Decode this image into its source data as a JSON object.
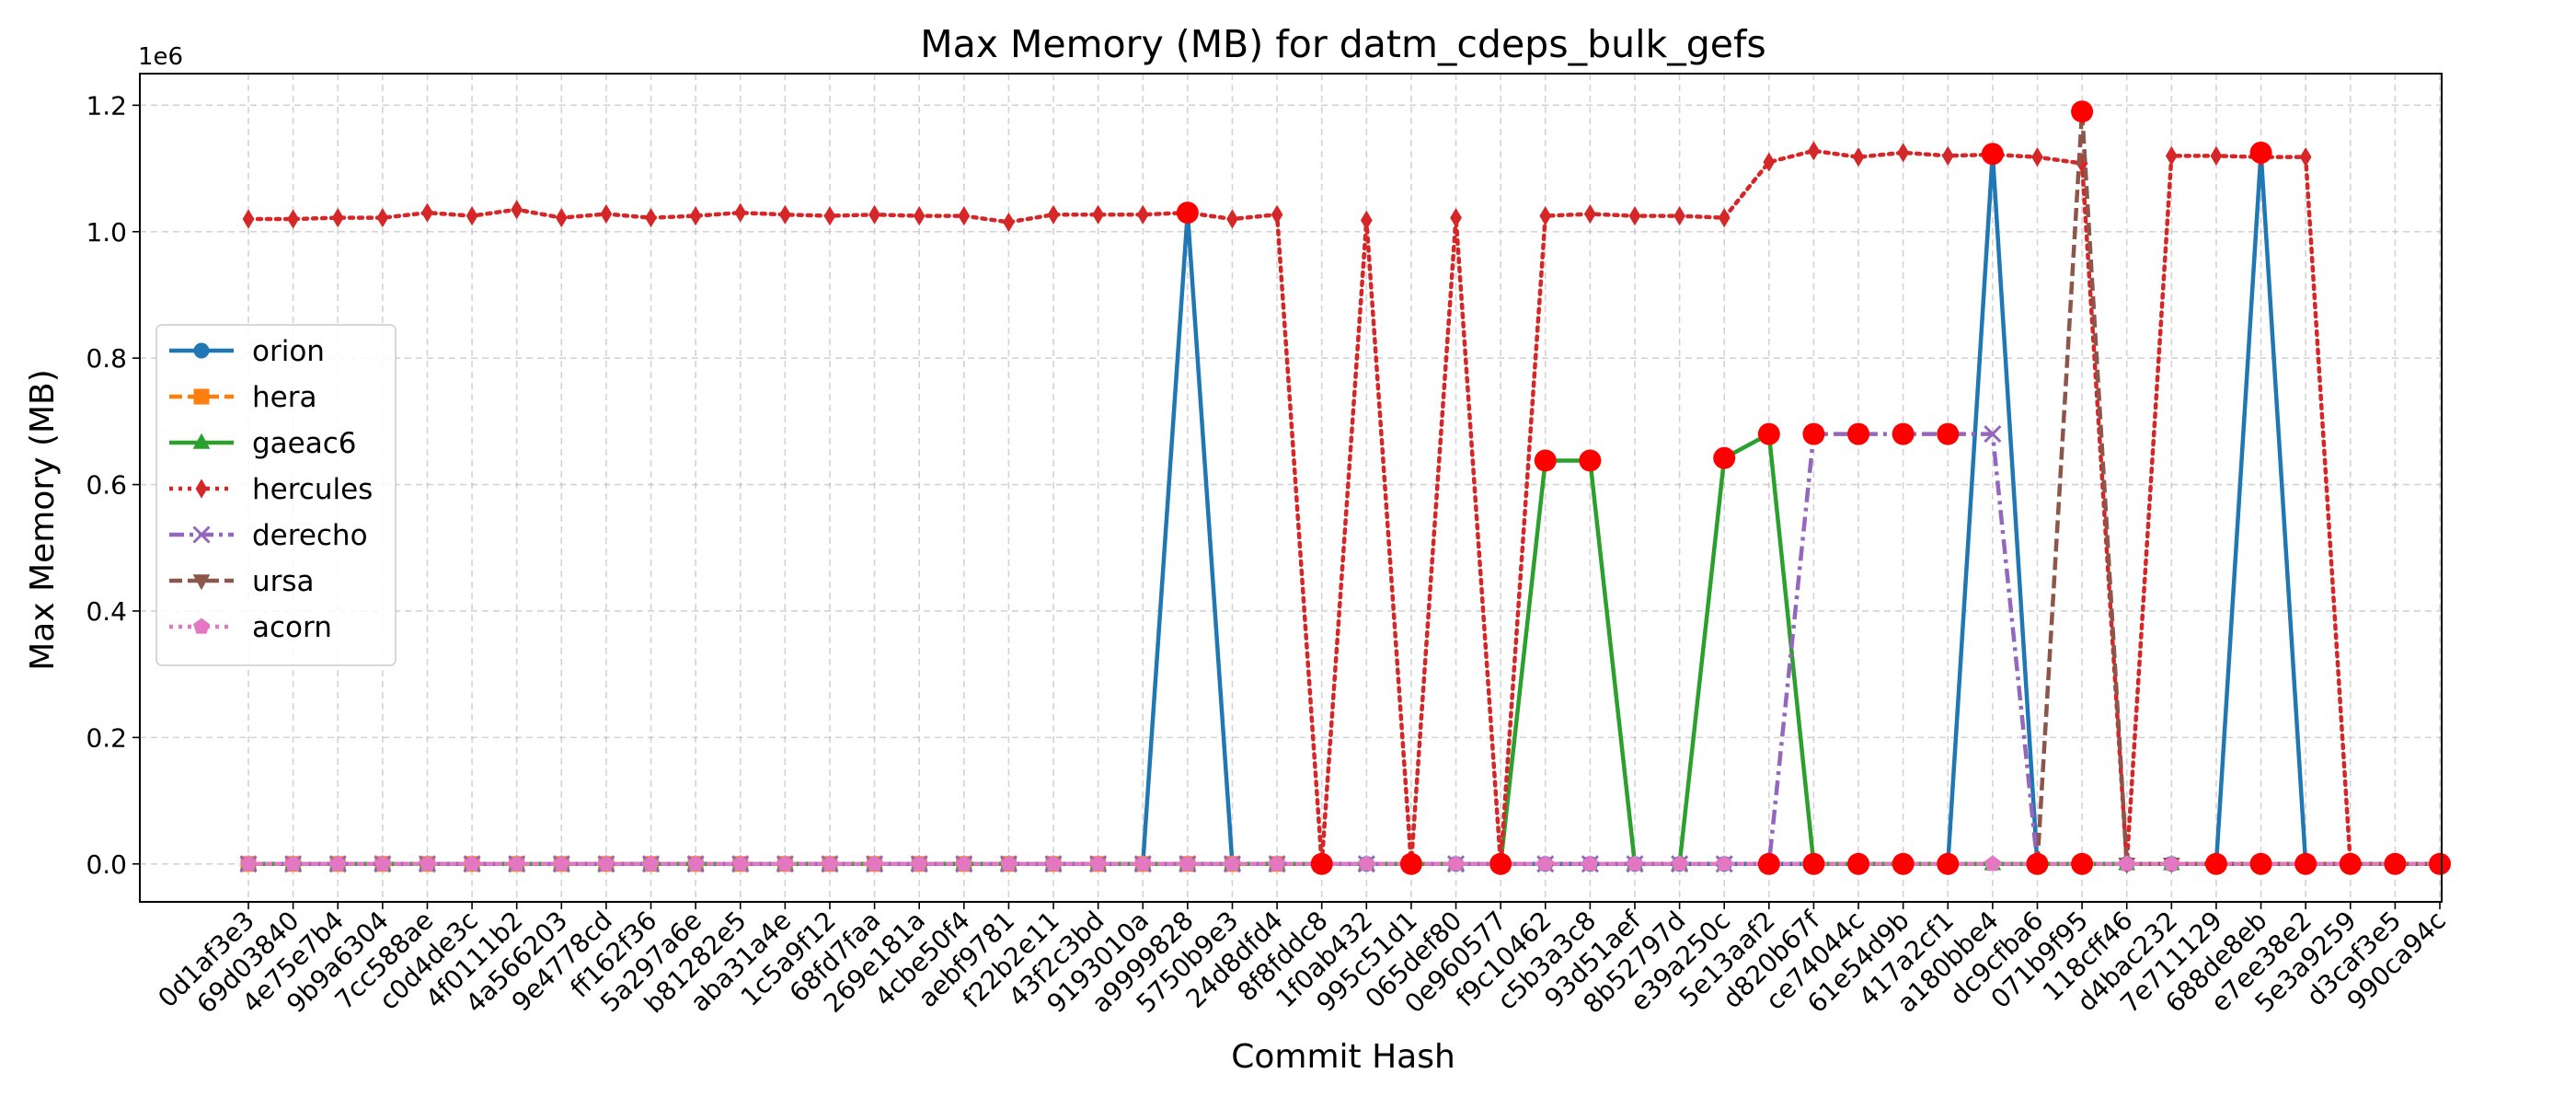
{
  "chart_data": {
    "type": "line",
    "title": "Max Memory (MB) for datm_cdeps_bulk_gefs",
    "xlabel": "Commit Hash",
    "ylabel": "Max Memory (MB)",
    "y_offset_label": "1e6",
    "ylim": [
      -0.06,
      1.25
    ],
    "yticks": [
      0.0,
      0.2,
      0.4,
      0.6,
      0.8,
      1.0,
      1.2
    ],
    "ytick_labels": [
      "0.0",
      "0.2",
      "0.4",
      "0.6",
      "0.8",
      "1.0",
      "1.2"
    ],
    "grid": true,
    "legend_position": "center-left",
    "categories": [
      "0d1af3e3",
      "69d03840",
      "4e75e7b4",
      "9b9a6304",
      "7cc588ae",
      "c0d4de3c",
      "4f0111b2",
      "4a566203",
      "9e4778cd",
      "ff162f36",
      "5a297a6e",
      "b81282e5",
      "aba31a4e",
      "1c5a9f12",
      "68fd7faa",
      "269e181a",
      "4cbe50f4",
      "aebf9781",
      "f22b2e11",
      "43f2c3bd",
      "9193010a",
      "a9999828",
      "5750b9e3",
      "24d8dfd4",
      "8f8fddc8",
      "1f0ab432",
      "995c51d1",
      "065def80",
      "0e960577",
      "f9c10462",
      "c5b3a3c8",
      "93d51aef",
      "8b52797d",
      "e39a250c",
      "5e13aaf2",
      "d820b67f",
      "ce74044c",
      "61e54d9b",
      "417a2cf1",
      "a180bbe4",
      "dc9cfba6",
      "071b9f95",
      "118cff46",
      "d4bac232",
      "7e711129",
      "688de8eb",
      "e7ee38e2",
      "5e3a9259",
      "d3caf3e5",
      "990ca94c"
    ],
    "series": [
      {
        "name": "orion",
        "color": "#1f77b4",
        "marker": "circle",
        "linestyle": "solid",
        "values": [
          0,
          0,
          0,
          0,
          0,
          0,
          0,
          0,
          0,
          0,
          0,
          0,
          0,
          0,
          0,
          0,
          0,
          0,
          0,
          0,
          0,
          1.03,
          0,
          0,
          0,
          0,
          0,
          0,
          0,
          0,
          0,
          0,
          0,
          0,
          0,
          0,
          0,
          0,
          0,
          1.123,
          0,
          0,
          0,
          0,
          0,
          1.125,
          0,
          null,
          null,
          null
        ]
      },
      {
        "name": "hera",
        "color": "#ff7f0e",
        "marker": "square",
        "linestyle": "dashed",
        "values": [
          0,
          0,
          0,
          0,
          0,
          0,
          0,
          0,
          0,
          0,
          0,
          0,
          0,
          0,
          0,
          0,
          0,
          0,
          0,
          0,
          0,
          0,
          0,
          0,
          null,
          null,
          null,
          null,
          null,
          null,
          null,
          null,
          null,
          null,
          null,
          null,
          null,
          null,
          null,
          null,
          null,
          null,
          null,
          null,
          null,
          null,
          null,
          null,
          null,
          null
        ]
      },
      {
        "name": "gaeac6",
        "color": "#2ca02c",
        "marker": "triangle",
        "linestyle": "solid",
        "values": [
          0,
          0,
          0,
          0,
          0,
          0,
          0,
          0,
          0,
          0,
          0,
          0,
          0,
          0,
          0,
          0,
          0,
          0,
          0,
          0,
          0,
          0,
          0,
          0,
          0,
          0,
          0,
          0,
          0,
          0.638,
          0.638,
          0,
          0,
          0.642,
          0.68,
          0,
          0,
          0,
          0,
          0,
          0,
          0,
          0,
          0,
          0,
          0,
          0,
          0,
          0,
          0
        ]
      },
      {
        "name": "hercules",
        "color": "#d62728",
        "marker": "diamond",
        "linestyle": "dotted",
        "values": [
          1.02,
          1.02,
          1.022,
          1.022,
          1.03,
          1.025,
          1.035,
          1.022,
          1.028,
          1.022,
          1.025,
          1.03,
          1.027,
          1.025,
          1.027,
          1.025,
          1.025,
          1.015,
          1.027,
          1.027,
          1.027,
          1.03,
          1.02,
          1.027,
          0,
          1.018,
          0,
          1.022,
          0,
          1.025,
          1.028,
          1.025,
          1.025,
          1.022,
          1.11,
          1.128,
          1.118,
          1.125,
          1.12,
          1.122,
          1.118,
          1.108,
          0,
          1.12,
          1.12,
          1.118,
          1.118,
          0,
          null,
          null
        ]
      },
      {
        "name": "derecho",
        "color": "#9467bd",
        "marker": "x",
        "linestyle": "dashdot",
        "values": [
          0,
          0,
          0,
          0,
          0,
          0,
          0,
          0,
          0,
          0,
          0,
          0,
          0,
          0,
          0,
          0,
          0,
          0,
          0,
          0,
          0,
          0,
          0,
          0,
          0,
          0,
          0,
          0,
          0,
          0,
          0,
          0,
          0,
          0,
          0,
          0.68,
          0.68,
          0.68,
          0.68,
          0.68,
          0,
          null,
          null,
          null,
          null,
          null,
          null,
          null,
          null,
          null
        ]
      },
      {
        "name": "ursa",
        "color": "#8c564b",
        "marker": "triangle-down",
        "linestyle": "dashed",
        "values": [
          null,
          null,
          null,
          null,
          null,
          null,
          null,
          null,
          null,
          null,
          null,
          null,
          null,
          null,
          null,
          null,
          null,
          null,
          null,
          null,
          null,
          null,
          null,
          null,
          null,
          null,
          null,
          null,
          null,
          null,
          null,
          null,
          null,
          null,
          null,
          null,
          null,
          null,
          null,
          null,
          0,
          1.19,
          0,
          0,
          0,
          0,
          0,
          0,
          0,
          0
        ]
      },
      {
        "name": "acorn",
        "color": "#e377c2",
        "marker": "pentagon",
        "linestyle": "dotted",
        "values": [
          0,
          0,
          0,
          0,
          0,
          0,
          0,
          0,
          0,
          0,
          0,
          0,
          0,
          0,
          0,
          0,
          0,
          0,
          0,
          0,
          0,
          0,
          0,
          0,
          0,
          0,
          0,
          0,
          0,
          0,
          0,
          0,
          0,
          0,
          0,
          0,
          0,
          0,
          0,
          0,
          0,
          0,
          0,
          0,
          0,
          0,
          0,
          0,
          0,
          0
        ]
      }
    ],
    "highlight_points": {
      "color": "#ff0000",
      "points": [
        [
          21,
          1.03
        ],
        [
          24,
          0
        ],
        [
          26,
          0
        ],
        [
          28,
          0
        ],
        [
          29,
          0.638
        ],
        [
          30,
          0.638
        ],
        [
          33,
          0.642
        ],
        [
          34,
          0.68
        ],
        [
          34,
          0
        ],
        [
          35,
          0.68
        ],
        [
          35,
          0
        ],
        [
          36,
          0.68
        ],
        [
          36,
          0
        ],
        [
          37,
          0.68
        ],
        [
          37,
          0
        ],
        [
          38,
          0.68
        ],
        [
          38,
          0
        ],
        [
          39,
          1.123
        ],
        [
          40,
          0
        ],
        [
          41,
          1.19
        ],
        [
          41,
          0
        ],
        [
          44,
          0
        ],
        [
          45,
          1.125
        ],
        [
          45,
          0
        ],
        [
          46,
          0
        ],
        [
          47,
          0
        ],
        [
          48,
          0
        ],
        [
          49,
          0
        ]
      ]
    }
  }
}
